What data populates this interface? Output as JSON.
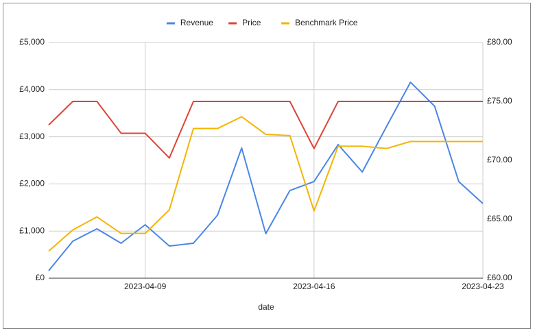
{
  "chart_data": {
    "type": "line",
    "x_label": "date",
    "x": [
      "2023-04-05",
      "2023-04-06",
      "2023-04-07",
      "2023-04-08",
      "2023-04-09",
      "2023-04-10",
      "2023-04-11",
      "2023-04-12",
      "2023-04-13",
      "2023-04-14",
      "2023-04-15",
      "2023-04-16",
      "2023-04-17",
      "2023-04-18",
      "2023-04-19",
      "2023-04-20",
      "2023-04-21",
      "2023-04-22",
      "2023-04-23"
    ],
    "xlim": [
      "2023-04-05",
      "2023-04-23"
    ],
    "xticks": [
      "2023-04-09",
      "2023-04-16",
      "2023-04-23"
    ],
    "series": [
      {
        "name": "Revenue",
        "color": "#4a86e8",
        "axis": "y",
        "values": [
          160,
          785,
          1047,
          741,
          1134,
          683,
          741,
          1337,
          2762,
          945,
          1860,
          2050,
          2834,
          2253,
          3212,
          4157,
          3648,
          2050,
          1584
        ]
      },
      {
        "name": "Price",
        "color": "#db4437",
        "axis": "y2",
        "values": [
          73.0,
          75.0,
          75.0,
          72.3,
          72.3,
          70.2,
          75.0,
          75.0,
          75.0,
          75.0,
          75.0,
          71.0,
          75.0,
          75.0,
          75.0,
          75.0,
          75.0,
          75.0,
          75.0
        ]
      },
      {
        "name": "Benchmark Price",
        "color": "#f4b400",
        "axis": "y2",
        "values": [
          62.3,
          64.1,
          65.2,
          63.8,
          63.8,
          65.8,
          72.7,
          72.7,
          73.7,
          72.2,
          72.1,
          65.7,
          71.2,
          71.2,
          71.0,
          71.6,
          71.6,
          71.6,
          71.6
        ]
      }
    ],
    "ylim": [
      0,
      5000
    ],
    "yticks": [
      {
        "value": 0,
        "label": "£0"
      },
      {
        "value": 1000,
        "label": "£1,000"
      },
      {
        "value": 2000,
        "label": "£2,000"
      },
      {
        "value": 3000,
        "label": "£3,000"
      },
      {
        "value": 4000,
        "label": "£4,000"
      },
      {
        "value": 5000,
        "label": "£5,000"
      }
    ],
    "y2lim": [
      60,
      80
    ],
    "y2ticks": [
      {
        "value": 60,
        "label": "£60.00"
      },
      {
        "value": 65,
        "label": "£65.00"
      },
      {
        "value": 70,
        "label": "£70.00"
      },
      {
        "value": 75,
        "label": "£75.00"
      },
      {
        "value": 80,
        "label": "£80.00"
      }
    ],
    "grid": true,
    "legend": "top"
  }
}
